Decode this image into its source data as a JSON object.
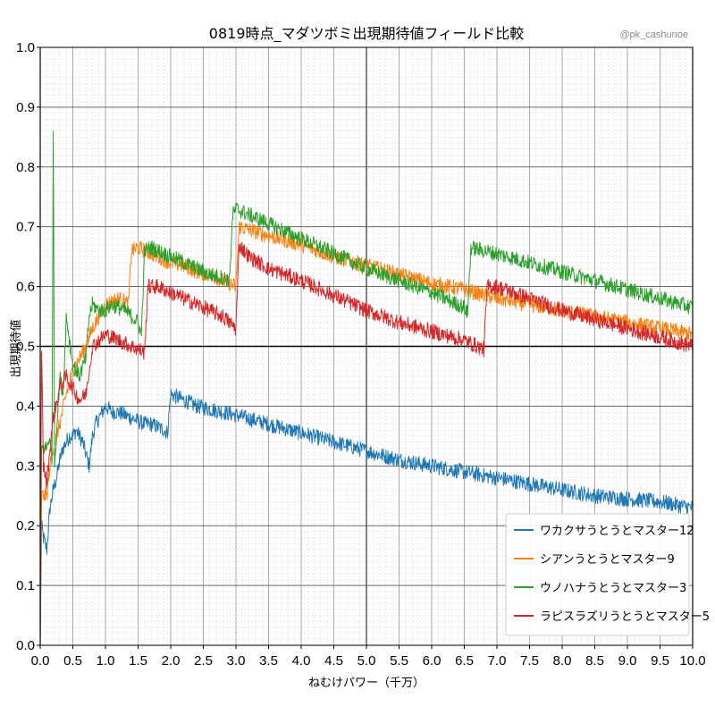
{
  "chart_data": {
    "type": "line",
    "title": "0819時点_マダツボミ出現期待値フィールド比較",
    "watermark": "@pk_cashunoe",
    "xlabel": "ねむけパワー（千万）",
    "ylabel": "出現期待値",
    "xlim": [
      0,
      10
    ],
    "ylim": [
      0,
      1
    ],
    "x_ticks": [
      "0.0",
      "0.5",
      "1.0",
      "1.5",
      "2.0",
      "2.5",
      "3.0",
      "3.5",
      "4.0",
      "4.5",
      "5.0",
      "5.5",
      "6.0",
      "6.5",
      "7.0",
      "7.5",
      "8.0",
      "8.5",
      "9.0",
      "9.5",
      "10.0"
    ],
    "y_ticks": [
      "0.0",
      "0.1",
      "0.2",
      "0.3",
      "0.4",
      "0.5",
      "0.6",
      "0.7",
      "0.8",
      "0.9",
      "1.0"
    ],
    "grid": true,
    "legend_position": "lower-right",
    "series": [
      {
        "name": "ワカクサうとうとマスター12",
        "color": "#1f77b4",
        "points": [
          [
            0.0,
            0.0
          ],
          [
            0.02,
            0.2
          ],
          [
            0.05,
            0.18
          ],
          [
            0.1,
            0.16
          ],
          [
            0.15,
            0.23
          ],
          [
            0.2,
            0.26
          ],
          [
            0.25,
            0.28
          ],
          [
            0.3,
            0.31
          ],
          [
            0.35,
            0.33
          ],
          [
            0.4,
            0.34
          ],
          [
            0.45,
            0.35
          ],
          [
            0.5,
            0.35
          ],
          [
            0.55,
            0.36
          ],
          [
            0.6,
            0.35
          ],
          [
            0.65,
            0.34
          ],
          [
            0.7,
            0.32
          ],
          [
            0.75,
            0.3
          ],
          [
            0.8,
            0.35
          ],
          [
            0.85,
            0.37
          ],
          [
            0.9,
            0.38
          ],
          [
            0.95,
            0.39
          ],
          [
            1.0,
            0.4
          ],
          [
            1.1,
            0.39
          ],
          [
            1.2,
            0.39
          ],
          [
            1.3,
            0.385
          ],
          [
            1.4,
            0.38
          ],
          [
            1.5,
            0.375
          ],
          [
            1.6,
            0.37
          ],
          [
            1.7,
            0.37
          ],
          [
            1.8,
            0.365
          ],
          [
            1.9,
            0.36
          ],
          [
            1.95,
            0.355
          ],
          [
            2.0,
            0.42
          ],
          [
            2.2,
            0.41
          ],
          [
            2.4,
            0.4
          ],
          [
            2.6,
            0.395
          ],
          [
            2.8,
            0.39
          ],
          [
            3.0,
            0.385
          ],
          [
            3.5,
            0.37
          ],
          [
            4.0,
            0.355
          ],
          [
            4.5,
            0.34
          ],
          [
            5.0,
            0.325
          ],
          [
            5.5,
            0.31
          ],
          [
            6.0,
            0.3
          ],
          [
            6.5,
            0.29
          ],
          [
            7.0,
            0.28
          ],
          [
            7.5,
            0.27
          ],
          [
            8.0,
            0.26
          ],
          [
            8.5,
            0.25
          ],
          [
            9.0,
            0.245
          ],
          [
            9.5,
            0.24
          ],
          [
            10.0,
            0.23
          ]
        ]
      },
      {
        "name": "シアンうとうとマスター9",
        "color": "#ff7f0e",
        "points": [
          [
            0.0,
            0.0
          ],
          [
            0.02,
            0.25
          ],
          [
            0.1,
            0.25
          ],
          [
            0.15,
            0.3
          ],
          [
            0.2,
            0.33
          ],
          [
            0.3,
            0.37
          ],
          [
            0.4,
            0.42
          ],
          [
            0.5,
            0.46
          ],
          [
            0.6,
            0.48
          ],
          [
            0.7,
            0.5
          ],
          [
            0.8,
            0.53
          ],
          [
            0.9,
            0.55
          ],
          [
            1.0,
            0.57
          ],
          [
            1.1,
            0.575
          ],
          [
            1.2,
            0.58
          ],
          [
            1.3,
            0.575
          ],
          [
            1.35,
            0.57
          ],
          [
            1.4,
            0.66
          ],
          [
            1.5,
            0.665
          ],
          [
            1.6,
            0.66
          ],
          [
            1.8,
            0.65
          ],
          [
            2.0,
            0.64
          ],
          [
            2.2,
            0.635
          ],
          [
            2.4,
            0.625
          ],
          [
            2.6,
            0.62
          ],
          [
            2.8,
            0.61
          ],
          [
            3.0,
            0.6
          ],
          [
            3.05,
            0.7
          ],
          [
            3.2,
            0.695
          ],
          [
            3.5,
            0.685
          ],
          [
            4.0,
            0.67
          ],
          [
            4.5,
            0.65
          ],
          [
            5.0,
            0.635
          ],
          [
            5.5,
            0.62
          ],
          [
            6.0,
            0.605
          ],
          [
            6.5,
            0.595
          ],
          [
            7.0,
            0.58
          ],
          [
            7.5,
            0.57
          ],
          [
            8.0,
            0.56
          ],
          [
            8.5,
            0.55
          ],
          [
            9.0,
            0.54
          ],
          [
            9.5,
            0.53
          ],
          [
            10.0,
            0.52
          ]
        ]
      },
      {
        "name": "ウノハナうとうとマスター3",
        "color": "#2ca02c",
        "points": [
          [
            0.0,
            0.0
          ],
          [
            0.02,
            0.33
          ],
          [
            0.1,
            0.33
          ],
          [
            0.15,
            0.35
          ],
          [
            0.18,
            0.3
          ],
          [
            0.2,
            0.87
          ],
          [
            0.22,
            0.3
          ],
          [
            0.3,
            0.45
          ],
          [
            0.35,
            0.42
          ],
          [
            0.4,
            0.55
          ],
          [
            0.5,
            0.47
          ],
          [
            0.6,
            0.45
          ],
          [
            0.7,
            0.48
          ],
          [
            0.75,
            0.55
          ],
          [
            0.8,
            0.57
          ],
          [
            0.9,
            0.56
          ],
          [
            1.0,
            0.56
          ],
          [
            1.1,
            0.57
          ],
          [
            1.2,
            0.565
          ],
          [
            1.3,
            0.56
          ],
          [
            1.4,
            0.55
          ],
          [
            1.5,
            0.54
          ],
          [
            1.55,
            0.52
          ],
          [
            1.6,
            0.66
          ],
          [
            1.7,
            0.665
          ],
          [
            1.8,
            0.66
          ],
          [
            2.0,
            0.65
          ],
          [
            2.2,
            0.64
          ],
          [
            2.4,
            0.63
          ],
          [
            2.6,
            0.62
          ],
          [
            2.8,
            0.615
          ],
          [
            2.9,
            0.61
          ],
          [
            2.95,
            0.72
          ],
          [
            3.0,
            0.73
          ],
          [
            3.2,
            0.72
          ],
          [
            3.5,
            0.705
          ],
          [
            4.0,
            0.68
          ],
          [
            4.5,
            0.655
          ],
          [
            5.0,
            0.63
          ],
          [
            5.5,
            0.61
          ],
          [
            6.0,
            0.59
          ],
          [
            6.5,
            0.565
          ],
          [
            6.55,
            0.555
          ],
          [
            6.6,
            0.665
          ],
          [
            7.0,
            0.655
          ],
          [
            7.5,
            0.64
          ],
          [
            8.0,
            0.625
          ],
          [
            8.5,
            0.61
          ],
          [
            9.0,
            0.595
          ],
          [
            9.5,
            0.58
          ],
          [
            10.0,
            0.565
          ]
        ]
      },
      {
        "name": "ラピスラズリうとうとマスター5",
        "color": "#d62728",
        "points": [
          [
            0.0,
            0.0
          ],
          [
            0.02,
            0.5
          ],
          [
            0.05,
            0.3
          ],
          [
            0.1,
            0.27
          ],
          [
            0.15,
            0.33
          ],
          [
            0.2,
            0.38
          ],
          [
            0.3,
            0.43
          ],
          [
            0.4,
            0.45
          ],
          [
            0.5,
            0.43
          ],
          [
            0.6,
            0.41
          ],
          [
            0.7,
            0.42
          ],
          [
            0.8,
            0.5
          ],
          [
            0.9,
            0.51
          ],
          [
            1.0,
            0.52
          ],
          [
            1.1,
            0.515
          ],
          [
            1.2,
            0.51
          ],
          [
            1.3,
            0.505
          ],
          [
            1.4,
            0.5
          ],
          [
            1.5,
            0.495
          ],
          [
            1.6,
            0.49
          ],
          [
            1.65,
            0.6
          ],
          [
            1.8,
            0.6
          ],
          [
            2.0,
            0.59
          ],
          [
            2.2,
            0.58
          ],
          [
            2.4,
            0.57
          ],
          [
            2.6,
            0.56
          ],
          [
            2.8,
            0.55
          ],
          [
            3.0,
            0.53
          ],
          [
            3.05,
            0.67
          ],
          [
            3.2,
            0.65
          ],
          [
            3.5,
            0.63
          ],
          [
            4.0,
            0.61
          ],
          [
            4.5,
            0.585
          ],
          [
            5.0,
            0.56
          ],
          [
            5.5,
            0.54
          ],
          [
            6.0,
            0.525
          ],
          [
            6.5,
            0.51
          ],
          [
            6.8,
            0.495
          ],
          [
            6.85,
            0.6
          ],
          [
            7.0,
            0.6
          ],
          [
            7.5,
            0.58
          ],
          [
            8.0,
            0.56
          ],
          [
            8.5,
            0.545
          ],
          [
            9.0,
            0.53
          ],
          [
            9.5,
            0.515
          ],
          [
            10.0,
            0.5
          ]
        ]
      }
    ]
  }
}
